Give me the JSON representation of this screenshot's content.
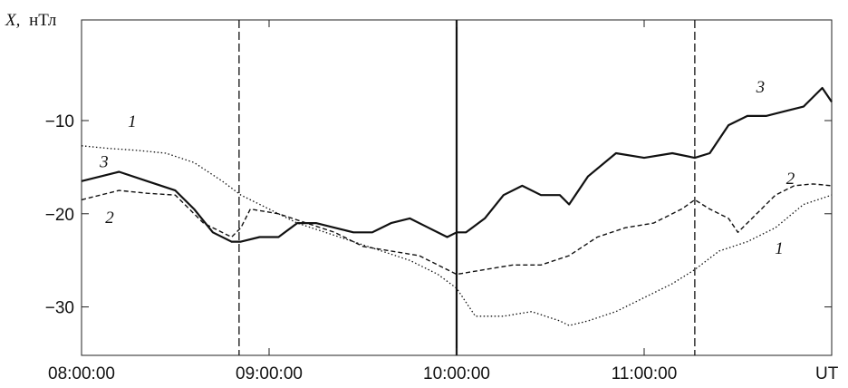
{
  "chart_data": {
    "type": "line",
    "ylabel_var": "X,",
    "ylabel_unit": "нТл",
    "x_unit_label": "UT",
    "x_ticks": [
      "08:00:00",
      "09:00:00",
      "10:00:00",
      "11:00:00"
    ],
    "x_tick_hours": [
      8,
      9,
      10,
      11
    ],
    "xlim": [
      8.0,
      12.0
    ],
    "y_ticks": [
      -10,
      -20,
      -30
    ],
    "ylim": [
      -35.2,
      0.8
    ],
    "grid": false,
    "vertical_markers": [
      {
        "x": 8.84,
        "style": "dashed"
      },
      {
        "x": 10.0,
        "style": "solid"
      },
      {
        "x": 11.27,
        "style": "dashed"
      }
    ],
    "series": [
      {
        "label": "1",
        "style": "dotted",
        "label_positions": [
          {
            "x": 8.27,
            "y": -10.7
          },
          {
            "x": 11.72,
            "y": -24.3
          }
        ],
        "x": [
          8.0,
          8.15,
          8.3,
          8.45,
          8.6,
          8.75,
          8.85,
          9.0,
          9.15,
          9.3,
          9.45,
          9.6,
          9.75,
          9.9,
          10.0,
          10.1,
          10.25,
          10.4,
          10.55,
          10.6,
          10.7,
          10.85,
          11.0,
          11.15,
          11.27,
          11.4,
          11.55,
          11.7,
          11.85,
          12.0
        ],
        "y": [
          -12.7,
          -13.0,
          -13.2,
          -13.5,
          -14.5,
          -16.5,
          -18.0,
          -19.5,
          -21.0,
          -22.0,
          -23.0,
          -24.0,
          -25.0,
          -26.5,
          -28.0,
          -31.0,
          -31.0,
          -30.5,
          -31.5,
          -32.0,
          -31.5,
          -30.5,
          -29.0,
          -27.5,
          -26.0,
          -24.0,
          -23.0,
          -21.5,
          -19.0,
          -18.0
        ]
      },
      {
        "label": "2",
        "style": "dashed",
        "label_positions": [
          {
            "x": 8.15,
            "y": -21.0
          },
          {
            "x": 11.78,
            "y": -16.8
          }
        ],
        "x": [
          8.0,
          8.1,
          8.2,
          8.35,
          8.5,
          8.65,
          8.8,
          8.85,
          8.9,
          9.05,
          9.2,
          9.35,
          9.5,
          9.65,
          9.8,
          9.9,
          10.0,
          10.15,
          10.3,
          10.45,
          10.6,
          10.75,
          10.9,
          11.05,
          11.2,
          11.27,
          11.35,
          11.45,
          11.5,
          11.6,
          11.7,
          11.8,
          11.9,
          12.0
        ],
        "y": [
          -18.5,
          -18.0,
          -17.5,
          -17.8,
          -18.0,
          -21.0,
          -22.5,
          -21.5,
          -19.5,
          -20.0,
          -21.0,
          -22.0,
          -23.5,
          -24.0,
          -24.5,
          -25.5,
          -26.5,
          -26.0,
          -25.5,
          -25.5,
          -24.5,
          -22.5,
          -21.5,
          -21.0,
          -19.5,
          -18.5,
          -19.5,
          -20.5,
          -22.0,
          -20.0,
          -18.0,
          -17.0,
          -16.8,
          -17.0
        ]
      },
      {
        "label": "3",
        "style": "solid",
        "label_positions": [
          {
            "x": 8.12,
            "y": -15.0
          },
          {
            "x": 11.62,
            "y": -7.0
          }
        ],
        "x": [
          8.0,
          8.1,
          8.2,
          8.35,
          8.5,
          8.6,
          8.7,
          8.8,
          8.85,
          8.95,
          9.05,
          9.15,
          9.25,
          9.35,
          9.45,
          9.55,
          9.65,
          9.75,
          9.85,
          9.95,
          10.0,
          10.05,
          10.15,
          10.25,
          10.35,
          10.45,
          10.55,
          10.6,
          10.7,
          10.85,
          11.0,
          11.15,
          11.27,
          11.35,
          11.45,
          11.55,
          11.65,
          11.75,
          11.85,
          11.95,
          12.0
        ],
        "y": [
          -16.5,
          -16.0,
          -15.5,
          -16.5,
          -17.5,
          -19.5,
          -22.0,
          -23.0,
          -23.0,
          -22.5,
          -22.5,
          -21.0,
          -21.0,
          -21.5,
          -22.0,
          -22.0,
          -21.0,
          -20.5,
          -21.5,
          -22.5,
          -22.0,
          -22.0,
          -20.5,
          -18.0,
          -17.0,
          -18.0,
          -18.0,
          -19.0,
          -16.0,
          -13.5,
          -14.0,
          -13.5,
          -14.0,
          -13.5,
          -10.5,
          -9.5,
          -9.5,
          -9.0,
          -8.5,
          -6.5,
          -8.0
        ]
      }
    ]
  }
}
